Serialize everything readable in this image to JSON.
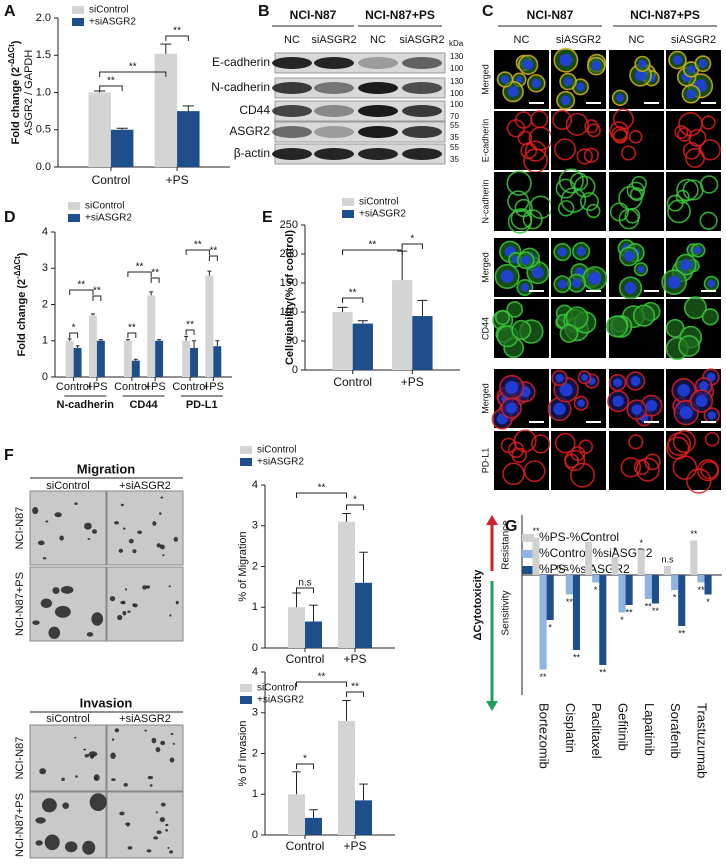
{
  "chart_data": [
    {
      "type": "bar",
      "panel": "A",
      "y_label": [
        {
          "text": "Fold change (2"
        },
        {
          "text": "-ΔΔCt",
          "sup": true
        },
        {
          "text": ")"
        }
      ],
      "y_label_2": "ASGR2 / GAPDH",
      "categories": [
        "Control",
        "+PS"
      ],
      "series": [
        {
          "name": "siControl",
          "color": "#d4d4d4",
          "values": [
            1.0,
            1.52
          ],
          "errors": [
            0.02,
            0.13
          ]
        },
        {
          "name": "+siASGR2",
          "color": "#1f4e8c",
          "values": [
            0.5,
            0.75
          ],
          "errors": [
            0.02,
            0.07
          ]
        }
      ],
      "ylim": [
        0,
        2
      ],
      "yticks": [
        {
          "value": 0,
          "label": "0.0"
        },
        0.5,
        {
          "value": 1,
          "label": "1.0"
        },
        1.5,
        {
          "value": 2,
          "label": "2.0"
        }
      ],
      "annotations": [
        "**",
        "**",
        "**"
      ],
      "legend": "upper left"
    },
    {
      "type": "bar",
      "panel": "D",
      "y_label": [
        {
          "text": "Fold change (2"
        },
        {
          "text": "-ΔΔCt",
          "sup": true
        },
        {
          "text": ")"
        }
      ],
      "categories": [
        "Control",
        "+PS",
        "Control",
        "+PS",
        "Control",
        "+PS"
      ],
      "groups": [
        "N-cadherin",
        "CD44",
        "PD-L1"
      ],
      "series": [
        {
          "name": "siControl",
          "color": "#d4d4d4",
          "values": [
            1.0,
            1.7,
            1.0,
            2.25,
            1.0,
            2.8
          ],
          "errors": [
            0.05,
            0.04,
            0.03,
            0.1,
            0.12,
            0.12
          ]
        },
        {
          "name": "+siASGR2",
          "color": "#1f4e8c",
          "values": [
            0.8,
            1.0,
            0.45,
            1.0,
            0.8,
            0.85
          ],
          "errors": [
            0.06,
            0.03,
            0.04,
            0.03,
            0.2,
            0.15
          ]
        }
      ],
      "ylim": [
        0,
        4
      ],
      "yticks": [
        0,
        1,
        2,
        3,
        4
      ],
      "annotations": [
        "*",
        "**",
        "**",
        "**",
        "**",
        "**",
        "**",
        "**",
        "**"
      ],
      "legend": "upper left"
    },
    {
      "type": "bar",
      "panel": "E",
      "y_label": [
        {
          "text": "Cell viability(% of control)"
        }
      ],
      "categories": [
        "Control",
        "+PS"
      ],
      "series": [
        {
          "name": "siControl",
          "color": "#d4d4d4",
          "values": [
            100,
            155
          ],
          "errors": [
            8,
            50
          ]
        },
        {
          "name": "+siASGR2",
          "color": "#1f4e8c",
          "values": [
            80,
            93
          ],
          "errors": [
            5,
            27
          ]
        }
      ],
      "ylim": [
        0,
        250
      ],
      "yticks": [
        0,
        50,
        100,
        150,
        200,
        250
      ],
      "annotations": [
        "**",
        "**",
        "*"
      ],
      "legend": "upper left"
    },
    {
      "type": "bar",
      "y_label": [
        {
          "text": "% of Migration"
        }
      ],
      "categories": [
        "Control",
        "+PS"
      ],
      "series": [
        {
          "name": "siControl",
          "color": "#d4d4d4",
          "values": [
            1.0,
            3.1
          ],
          "errors": [
            0.35,
            0.2
          ]
        },
        {
          "name": "+siASGR2",
          "color": "#1f4e8c",
          "values": [
            0.65,
            1.6
          ],
          "errors": [
            0.4,
            0.75
          ]
        }
      ],
      "ylim": [
        0,
        4
      ],
      "yticks": [
        0,
        1,
        2,
        3,
        4
      ],
      "annotations": [
        "n.s",
        "**",
        "*"
      ],
      "legend": "upper left"
    },
    {
      "type": "bar",
      "y_label": [
        {
          "text": "% of Invasion"
        }
      ],
      "categories": [
        "Control",
        "+PS"
      ],
      "series": [
        {
          "name": "siControl",
          "color": "#d4d4d4",
          "values": [
            1.0,
            2.8
          ],
          "errors": [
            0.55,
            0.5
          ]
        },
        {
          "name": "+siASGR2",
          "color": "#1f4e8c",
          "values": [
            0.42,
            0.85
          ],
          "errors": [
            0.2,
            0.4
          ]
        }
      ],
      "ylim": [
        0,
        4
      ],
      "yticks": [
        0,
        1,
        2,
        3,
        4
      ],
      "annotations": [
        "*",
        "**",
        "**"
      ],
      "legend": "upper left"
    },
    {
      "type": "bar",
      "panel": "G",
      "y_label": [
        {
          "text": "ΔCytotoxicity"
        }
      ],
      "direction_labels": [
        "Resistance",
        "Sensitivity"
      ],
      "categories": [
        "Bortezomib",
        "Cisplatin",
        "Paclitaxel",
        "Gefitinib",
        "Lapatinib",
        "Sorafenib",
        "Trastuzumab"
      ],
      "series": [
        {
          "name": "%PS-%Control",
          "color": "#d0d0d0",
          "values": [
            25,
            1,
            22,
            12,
            17,
            6,
            23
          ],
          "significance": [
            "**",
            "n.s",
            "*",
            "*",
            "*",
            "n.s",
            "**"
          ]
        },
        {
          "name": "%Control-%siASGR2",
          "color": "#8db4e2",
          "values": [
            -63,
            -13,
            -5,
            -25,
            -16,
            -10,
            -5
          ],
          "significance": [
            "**",
            "**",
            "*",
            "*",
            "**",
            "*",
            "**"
          ]
        },
        {
          "name": "%PS-%siASGR2",
          "color": "#1f4e8c",
          "values": [
            -30,
            -50,
            -60,
            -20,
            -19,
            -34,
            -13
          ],
          "significance": [
            "*",
            "**",
            "**",
            "**",
            "**",
            "**",
            "*"
          ]
        }
      ],
      "ylim": [
        -80,
        40
      ],
      "legend": "upper left"
    }
  ],
  "blot": {
    "panel": "B",
    "groups": [
      "NCI-N87",
      "NCI-N87+PS"
    ],
    "lanes": [
      "NC",
      "siASGR2",
      "NC",
      "siASGR2"
    ],
    "rows": [
      "E-cadherin",
      "N-cadherin",
      "CD44",
      "ASGR2",
      "β-actin"
    ],
    "unit": "kDa",
    "markers": [
      [
        130,
        100
      ],
      [
        130,
        100
      ],
      [
        100,
        70
      ],
      [
        55,
        35
      ],
      [
        55,
        35
      ]
    ]
  },
  "microscopy": {
    "panel": "C",
    "groups": [
      "NCI-N87",
      "NCI-N87+PS"
    ],
    "columns": [
      "NC",
      "siASGR2",
      "NC",
      "siASGR2"
    ],
    "rows": [
      "Merged",
      "E-cadherin",
      "N-cadherin",
      "Merged",
      "CD44",
      "Merged",
      "PD-L1"
    ]
  },
  "assay_images": {
    "panel": "F",
    "titles": [
      "Migration",
      "Invasion"
    ],
    "columns": [
      "siControl",
      "+siASGR2"
    ],
    "rows": [
      "NCI-N87",
      "NCI-N87+PS"
    ]
  }
}
